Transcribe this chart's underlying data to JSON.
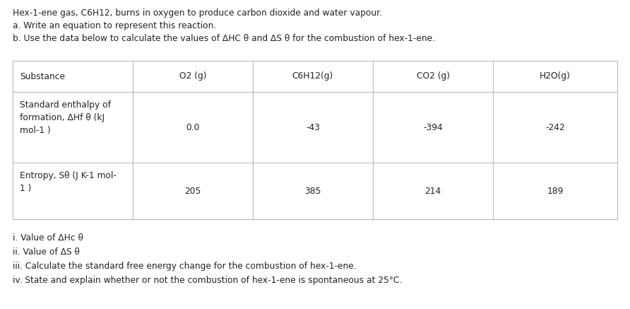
{
  "intro_lines": [
    "Hex-1-ene gas, C6H12, burns in oxygen to produce carbon dioxide and water vapour.",
    "a. Write an equation to represent this reaction.",
    "b. Use the data below to calculate the values of ΔHC θ and ΔS θ for the combustion of hex-1-ene."
  ],
  "table": {
    "col_headers": [
      "Substance",
      "O2 (g)",
      "C6H12(g)",
      "CO2 (g)",
      "H2O(g)"
    ],
    "row1_label": "Standard enthalpy of\nformation, ΔHf θ (kJ\nmol-1 )",
    "row1_values": [
      "0.0",
      "-43",
      "-394",
      "-242"
    ],
    "row2_label": "Entropy, Sθ (J K-1 mol-\n1 )",
    "row2_values": [
      "205",
      "385",
      "214",
      "189"
    ]
  },
  "footer_lines": [
    "i. Value of ΔHᴄ θ",
    "ii. Value of ΔS θ",
    "iii. Calculate the standard free energy change for the combustion of hex-1-ene.",
    "iv. State and explain whether or not the combustion of hex-1-ene is spontaneous at 25°C."
  ],
  "bg_color": "#ffffff",
  "text_color": "#222222",
  "table_line_color": "#bbbbbb",
  "font_size": 8.8,
  "font_family": "DejaVu Sans"
}
